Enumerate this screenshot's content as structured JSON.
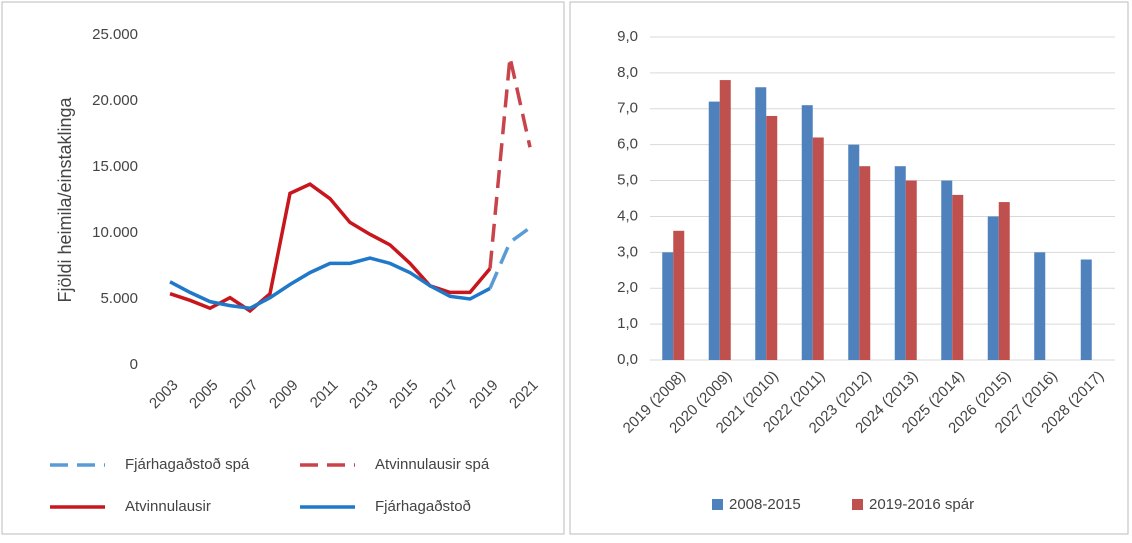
{
  "chart_data": [
    {
      "type": "line",
      "y_label": "Fjöldi heimila/einstaklinga",
      "x": [
        2003,
        2004,
        2005,
        2006,
        2007,
        2008,
        2009,
        2010,
        2011,
        2012,
        2013,
        2014,
        2015,
        2016,
        2017,
        2018,
        2019,
        2020,
        2021
      ],
      "xlim": [
        2003,
        2021
      ],
      "xticks": [
        2003,
        2005,
        2007,
        2009,
        2011,
        2013,
        2015,
        2017,
        2019,
        2021
      ],
      "ylim": [
        0,
        25000
      ],
      "yticks": [
        0,
        {
          "value": 5000,
          "label": "5.000"
        },
        {
          "value": 10000,
          "label": "10.000"
        },
        {
          "value": 15000,
          "label": "15.000"
        },
        {
          "value": 20000,
          "label": "20.000"
        },
        {
          "value": 25000,
          "label": "25.000"
        }
      ],
      "grid": false,
      "series": [
        {
          "name": "Fjárhagaðstoð spá",
          "color": "#5b9bd5",
          "dashed": true,
          "values": [
            null,
            null,
            null,
            null,
            null,
            null,
            null,
            null,
            null,
            null,
            null,
            null,
            null,
            null,
            null,
            null,
            5800,
            9300,
            10400
          ]
        },
        {
          "name": "Atvinnulausir spá",
          "color": "#c8434a",
          "dashed": true,
          "values": [
            null,
            null,
            null,
            null,
            null,
            null,
            null,
            null,
            null,
            null,
            null,
            null,
            null,
            null,
            null,
            null,
            7300,
            23300,
            16500
          ]
        },
        {
          "name": "Atvinnulausir",
          "color": "#c8161d",
          "dashed": false,
          "values": [
            5400,
            4900,
            4300,
            5100,
            4100,
            5400,
            13000,
            13700,
            12600,
            10800,
            9900,
            9100,
            7700,
            6000,
            5500,
            5500,
            7300,
            null,
            null
          ]
        },
        {
          "name": "Fjárhagaðstoð",
          "color": "#1f78c8",
          "dashed": false,
          "values": [
            6300,
            5500,
            4800,
            4500,
            4300,
            5100,
            6100,
            7000,
            7700,
            7700,
            8100,
            7700,
            7000,
            6000,
            5200,
            5000,
            5800,
            null,
            null
          ]
        }
      ]
    },
    {
      "type": "bar",
      "categories": [
        "2019 (2008)",
        "2020 (2009)",
        "2021 (2010)",
        "2022 (2011)",
        "2023 (2012)",
        "2024 (2013)",
        "2025 (2014)",
        "2026 (2015)",
        "2027 (2016)",
        "2028 (2017)"
      ],
      "ylim": [
        0,
        9
      ],
      "yticks": [
        {
          "value": 0,
          "label": "0,0"
        },
        {
          "value": 1,
          "label": "1,0"
        },
        {
          "value": 2,
          "label": "2,0"
        },
        {
          "value": 3,
          "label": "3,0"
        },
        {
          "value": 4,
          "label": "4,0"
        },
        {
          "value": 5,
          "label": "5,0"
        },
        {
          "value": 6,
          "label": "6,0"
        },
        {
          "value": 7,
          "label": "7,0"
        },
        {
          "value": 8,
          "label": "8,0"
        },
        {
          "value": 9,
          "label": "9,0"
        }
      ],
      "grid": true,
      "series": [
        {
          "name": "2008-2015",
          "color": "#4f81bd",
          "values": [
            3.0,
            7.2,
            7.6,
            7.1,
            6.0,
            5.4,
            5.0,
            4.0,
            3.0,
            2.8
          ]
        },
        {
          "name": "2019-2016 spár",
          "color": "#c0504d",
          "values": [
            3.6,
            7.8,
            6.8,
            6.2,
            5.4,
            5.0,
            4.6,
            4.4,
            null,
            null
          ]
        }
      ]
    }
  ]
}
